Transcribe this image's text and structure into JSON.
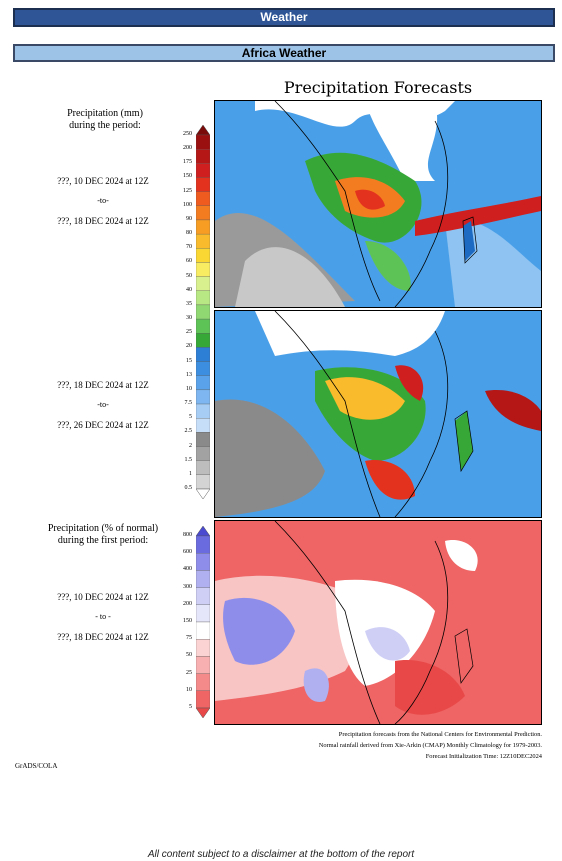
{
  "header": {
    "title": "Weather"
  },
  "section": {
    "title": "Africa Weather"
  },
  "figure": {
    "title": "Precipitation Forecasts",
    "precip_heading": [
      "Precipitation (mm)",
      "during the period:"
    ],
    "period1": {
      "start": "???, 10 DEC 2024 at 12Z",
      "sep": "-to-",
      "end": "???, 18 DEC 2024 at 12Z"
    },
    "period2": {
      "start": "???, 18 DEC 2024 at 12Z",
      "sep": "-to-",
      "end": "???, 26 DEC 2024 at 12Z"
    },
    "pct_heading": [
      "Precipitation (% of normal)",
      "during the first period:"
    ],
    "period3": {
      "start": "???, 10 DEC 2024 at 12Z",
      "sep": "- to -",
      "end": "???, 18 DEC 2024 at 12Z"
    },
    "mm_scale": [
      "250",
      "200",
      "175",
      "150",
      "125",
      "100",
      "90",
      "80",
      "70",
      "60",
      "50",
      "40",
      "35",
      "30",
      "25",
      "20",
      "15",
      "13",
      "10",
      "7.5",
      "5",
      "2.5",
      "2",
      "1.5",
      "1",
      "0.5"
    ],
    "mm_colors": [
      "#7a0b0b",
      "#9a1010",
      "#b51616",
      "#cf1f1f",
      "#e3321e",
      "#ef5a1e",
      "#f47c20",
      "#f79d24",
      "#f9bb2b",
      "#fbd733",
      "#f8ec62",
      "#d9f08f",
      "#b7e883",
      "#8fd872",
      "#5ec356",
      "#36a838",
      "#2d7fd6",
      "#3c8fe0",
      "#5aa2ea",
      "#7db6f0",
      "#a7cdf5",
      "#c6def8",
      "#8a8a8a",
      "#a2a2a2",
      "#bdbdbd",
      "#d4d4d4",
      "#ffffff"
    ],
    "pct_scale": [
      "800",
      "600",
      "400",
      "300",
      "200",
      "150",
      "75",
      "50",
      "25",
      "10",
      "5"
    ],
    "pct_colors": [
      "#4a4ad0",
      "#6b6be0",
      "#8e8eea",
      "#b0b0f0",
      "#cfcff6",
      "#e6e6fa",
      "#ffffff",
      "#fbd3d3",
      "#f8b0b0",
      "#f48a8a",
      "#ef6464",
      "#e84848"
    ],
    "footnote": [
      "Precipitation forecasts from the National Centers for Environmental Prediction.",
      "Normal rainfall derived from Xie-Arkin (CMAP) Monthly Climatology for 1979-2003.",
      "Forecast Initialization Time: 12Z10DEC2024"
    ],
    "credit": "GrADS/COLA"
  },
  "disclaimer": "All content subject to a disclaimer at the bottom of the report"
}
